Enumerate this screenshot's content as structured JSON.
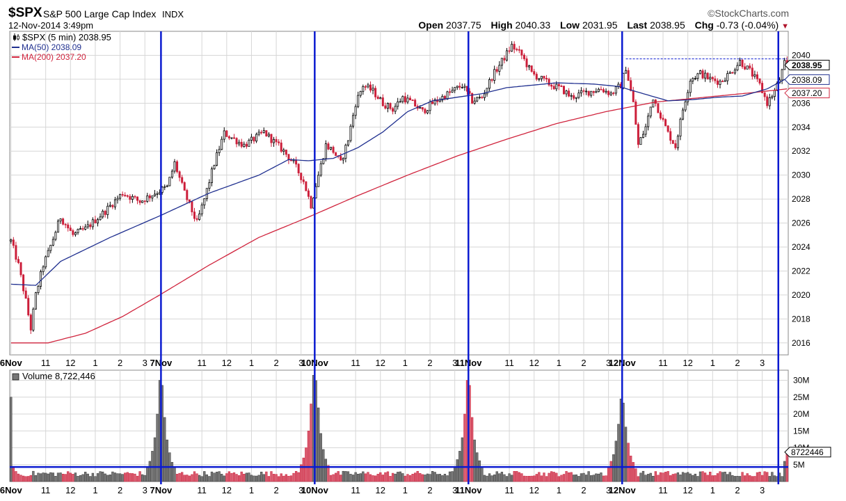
{
  "header": {
    "symbol": "$SPX",
    "name": "S&P 500 Large Cap Index",
    "exchange": "INDX",
    "datetime": "12-Nov-2014 3:49pm",
    "brand": "©StockCharts.com",
    "quote": {
      "open_label": "Open",
      "open": "2037.75",
      "high_label": "High",
      "high": "2040.33",
      "low_label": "Low",
      "low": "2031.95",
      "last_label": "Last",
      "last": "2038.95",
      "chg_label": "Chg",
      "chg": "-0.73 (-0.04%)",
      "chg_direction": "down"
    }
  },
  "colors": {
    "up": "#000000",
    "down": "#cc1f3a",
    "ma50": "#1f2f8f",
    "ma200": "#d0243d",
    "marker": "#0a1ad0",
    "grid": "#d6d6d6"
  },
  "chart_data": [
    {
      "type": "candlestick",
      "legend": [
        {
          "icon": "candlestick-icon",
          "text": "$SPX (5 min) 2038.95",
          "color": "#000000"
        },
        {
          "text": "MA(50) 2038.09",
          "color": "#1f2f8f"
        },
        {
          "text": "MA(200) 2037.20",
          "color": "#d0243d"
        }
      ],
      "ylim": [
        2015,
        2042
      ],
      "yticks": [
        2016,
        2018,
        2020,
        2022,
        2024,
        2026,
        2028,
        2030,
        2032,
        2034,
        2036,
        2038,
        2040
      ],
      "price_tags": [
        {
          "label": "2038.95",
          "value": 2038.95,
          "style": "last"
        },
        {
          "label": "2038.09",
          "value": 2038.09,
          "style": "ma50"
        },
        {
          "label": "2037.20",
          "value": 2037.2,
          "style": "ma200"
        }
      ],
      "reference_line": {
        "value": 2039.7,
        "style": "dashed"
      },
      "close_path": [
        [
          0,
          2024.5
        ],
        [
          3,
          2022.5
        ],
        [
          6,
          2019.5
        ],
        [
          8,
          2017.2
        ],
        [
          10,
          2020.0
        ],
        [
          13,
          2022.5
        ],
        [
          15,
          2023.5
        ],
        [
          20,
          2026.5
        ],
        [
          25,
          2025.0
        ],
        [
          30,
          2025.5
        ],
        [
          38,
          2027.0
        ],
        [
          45,
          2028.5
        ],
        [
          52,
          2027.8
        ],
        [
          58,
          2028.5
        ],
        [
          63,
          2029.0
        ],
        [
          66,
          2031.0
        ],
        [
          70,
          2028.5
        ],
        [
          73,
          2027.0
        ],
        [
          75,
          2026.0
        ],
        [
          78,
          2028.0
        ],
        [
          82,
          2031.0
        ],
        [
          86,
          2033.5
        ],
        [
          90,
          2033.0
        ],
        [
          94,
          2032.5
        ],
        [
          98,
          2033.0
        ],
        [
          102,
          2033.6
        ],
        [
          106,
          2032.8
        ],
        [
          110,
          2032.0
        ],
        [
          114,
          2031.0
        ],
        [
          118,
          2029.5
        ],
        [
          121,
          2027.5
        ],
        [
          124,
          2030.0
        ],
        [
          127,
          2032.5
        ],
        [
          130,
          2032.0
        ],
        [
          133,
          2031.0
        ],
        [
          136,
          2033.0
        ],
        [
          139,
          2036.0
        ],
        [
          142,
          2037.5
        ],
        [
          146,
          2037.0
        ],
        [
          150,
          2036.0
        ],
        [
          154,
          2035.5
        ],
        [
          158,
          2036.5
        ],
        [
          162,
          2036.0
        ],
        [
          166,
          2035.3
        ],
        [
          170,
          2036.0
        ],
        [
          174,
          2036.5
        ],
        [
          178,
          2037.0
        ],
        [
          182,
          2037.5
        ],
        [
          186,
          2036.2
        ],
        [
          190,
          2036.5
        ],
        [
          194,
          2038.2
        ],
        [
          198,
          2039.5
        ],
        [
          202,
          2040.8
        ],
        [
          206,
          2040.0
        ],
        [
          210,
          2038.5
        ],
        [
          214,
          2038.0
        ],
        [
          218,
          2037.5
        ],
        [
          222,
          2037.2
        ],
        [
          226,
          2036.5
        ],
        [
          230,
          2036.8
        ],
        [
          234,
          2037.0
        ],
        [
          238,
          2037.2
        ],
        [
          242,
          2036.8
        ],
        [
          246,
          2037.5
        ],
        [
          248,
          2039.0
        ],
        [
          251,
          2036.0
        ],
        [
          253,
          2032.5
        ],
        [
          256,
          2034.0
        ],
        [
          259,
          2036.5
        ],
        [
          262,
          2035.0
        ],
        [
          265,
          2033.5
        ],
        [
          268,
          2032.4
        ],
        [
          271,
          2035.5
        ],
        [
          274,
          2038.0
        ],
        [
          278,
          2038.5
        ],
        [
          282,
          2038.0
        ],
        [
          286,
          2037.8
        ],
        [
          290,
          2038.5
        ],
        [
          294,
          2039.5
        ],
        [
          298,
          2038.7
        ],
        [
          302,
          2037.5
        ],
        [
          305,
          2036.0
        ],
        [
          308,
          2037.0
        ],
        [
          310,
          2038.0
        ],
        [
          312,
          2039.3
        ],
        [
          313,
          2038.95
        ]
      ],
      "ma50_path": [
        [
          0,
          2020.9
        ],
        [
          10,
          2020.8
        ],
        [
          20,
          2022.8
        ],
        [
          40,
          2024.8
        ],
        [
          60,
          2026.6
        ],
        [
          80,
          2028.5
        ],
        [
          100,
          2030.0
        ],
        [
          112,
          2031.3
        ],
        [
          120,
          2031.2
        ],
        [
          130,
          2031.4
        ],
        [
          140,
          2032.3
        ],
        [
          150,
          2033.6
        ],
        [
          160,
          2035.3
        ],
        [
          170,
          2036.2
        ],
        [
          180,
          2036.5
        ],
        [
          190,
          2036.8
        ],
        [
          200,
          2037.3
        ],
        [
          210,
          2037.5
        ],
        [
          220,
          2037.7
        ],
        [
          235,
          2037.6
        ],
        [
          245,
          2037.4
        ],
        [
          255,
          2036.8
        ],
        [
          265,
          2036.2
        ],
        [
          275,
          2036.3
        ],
        [
          285,
          2036.5
        ],
        [
          295,
          2036.6
        ],
        [
          305,
          2037.2
        ],
        [
          313,
          2038.09
        ]
      ],
      "ma200_path": [
        [
          0,
          2016.0
        ],
        [
          15,
          2016.0
        ],
        [
          30,
          2016.8
        ],
        [
          45,
          2018.2
        ],
        [
          60,
          2020.0
        ],
        [
          80,
          2022.5
        ],
        [
          100,
          2024.8
        ],
        [
          120,
          2026.5
        ],
        [
          140,
          2028.3
        ],
        [
          160,
          2030.0
        ],
        [
          180,
          2031.6
        ],
        [
          200,
          2033.0
        ],
        [
          220,
          2034.3
        ],
        [
          240,
          2035.3
        ],
        [
          260,
          2036.1
        ],
        [
          280,
          2036.5
        ],
        [
          300,
          2036.9
        ],
        [
          313,
          2037.2
        ]
      ],
      "x_labels": [
        {
          "label": "6Nov",
          "pos": 0,
          "bold": true
        },
        {
          "label": "11",
          "pos": 14
        },
        {
          "label": "12",
          "pos": 24
        },
        {
          "label": "1",
          "pos": 34
        },
        {
          "label": "2",
          "pos": 44
        },
        {
          "label": "3",
          "pos": 54
        },
        {
          "label": "7Nov",
          "pos": 60.5,
          "bold": true
        },
        {
          "label": "11",
          "pos": 77
        },
        {
          "label": "12",
          "pos": 87
        },
        {
          "label": "1",
          "pos": 97
        },
        {
          "label": "2",
          "pos": 107
        },
        {
          "label": "3",
          "pos": 117
        },
        {
          "label": "10Nov",
          "pos": 122.5,
          "bold": true
        },
        {
          "label": "11",
          "pos": 139
        },
        {
          "label": "12",
          "pos": 149
        },
        {
          "label": "1",
          "pos": 159
        },
        {
          "label": "2",
          "pos": 169
        },
        {
          "label": "3",
          "pos": 179
        },
        {
          "label": "11Nov",
          "pos": 184.5,
          "bold": true
        },
        {
          "label": "11",
          "pos": 201
        },
        {
          "label": "12",
          "pos": 211
        },
        {
          "label": "1",
          "pos": 221
        },
        {
          "label": "2",
          "pos": 231
        },
        {
          "label": "3",
          "pos": 241
        },
        {
          "label": "12Nov",
          "pos": 246.5,
          "bold": true
        },
        {
          "label": "11",
          "pos": 263
        },
        {
          "label": "12",
          "pos": 273
        },
        {
          "label": "1",
          "pos": 283
        },
        {
          "label": "2",
          "pos": 293
        },
        {
          "label": "3",
          "pos": 303
        }
      ],
      "session_markers": [
        60.5,
        122.5,
        184.5,
        246.5,
        309.5
      ]
    },
    {
      "type": "bar",
      "legend": [
        {
          "text": "Volume 8,722,446",
          "color": "#000000"
        }
      ],
      "ylim": [
        0,
        33000000
      ],
      "yticks": [
        {
          "label": "30M",
          "value": 30000000
        },
        {
          "label": "25M",
          "value": 25000000
        },
        {
          "label": "20M",
          "value": 20000000
        },
        {
          "label": "15M",
          "value": 15000000
        },
        {
          "label": "10M",
          "value": 10000000
        },
        {
          "label": "5M",
          "value": 5000000
        }
      ],
      "last_tag": {
        "label": "8722446",
        "value": 8722446
      },
      "reference_line": {
        "value": 4300000
      },
      "base_volume": 2300000,
      "session_profile": [
        25000000,
        9000000,
        6000000,
        4500000,
        3800000,
        3300000,
        3000000
      ],
      "session_spikes": [
        {
          "session": 0,
          "values": [
            3500000,
            4500000,
            6000000,
            8000000,
            11000000
          ]
        },
        {
          "session": 1,
          "values": [
            4500000,
            6000000,
            9000000,
            13000000,
            20000000,
            30000000
          ]
        },
        {
          "session": 2,
          "values": [
            5000000,
            7000000,
            10000000,
            15000000,
            23000000,
            31500000
          ]
        },
        {
          "session": 3,
          "values": [
            4500000,
            6500000,
            9000000,
            13000000,
            20000000,
            30000000
          ]
        },
        {
          "session": 4,
          "values": [
            4000000,
            6000000,
            8000000,
            12000000,
            17000000,
            24500000
          ]
        }
      ],
      "last_session_tail": [
        6000000,
        8722446
      ]
    }
  ]
}
